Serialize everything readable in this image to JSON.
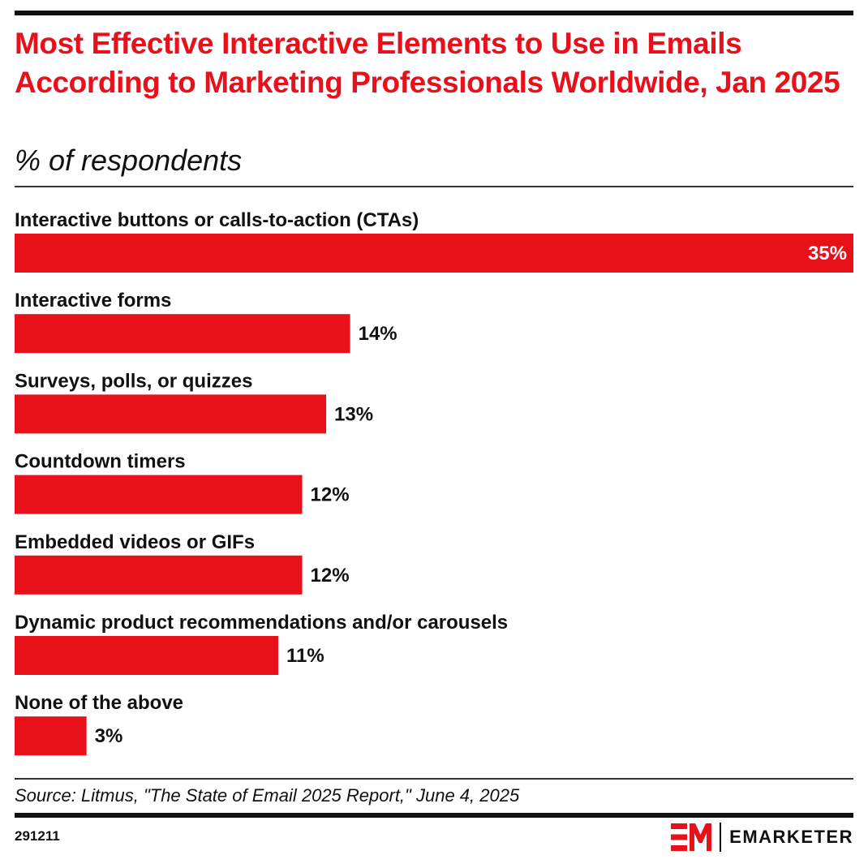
{
  "title": "Most Effective Interactive Elements to Use in Emails According to Marketing Professionals Worldwide, Jan 2025",
  "subtitle": "% of respondents",
  "source": "Source: Litmus, \"The State of Email 2025 Report,\" June 4, 2025",
  "chart_id": "291211",
  "brand": {
    "name": "EMARKETER",
    "mark": "EM",
    "accent_color": "#e8111b"
  },
  "chart_data": {
    "type": "bar",
    "orientation": "horizontal",
    "categories": [
      "Interactive buttons or calls-to-action (CTAs)",
      "Interactive forms",
      "Surveys, polls, or quizzes",
      "Countdown timers",
      "Embedded videos or GIFs",
      "Dynamic product recommendations and/or carousels",
      "None of the above"
    ],
    "values": [
      35,
      14,
      13,
      12,
      12,
      11,
      3
    ],
    "value_labels": [
      "35%",
      "14%",
      "13%",
      "12%",
      "12%",
      "11%",
      "3%"
    ],
    "unit": "%",
    "bar_color": "#e8111b",
    "label_inside_largest": true,
    "xlim": [
      0,
      35
    ],
    "grid": false,
    "legend": "none"
  }
}
